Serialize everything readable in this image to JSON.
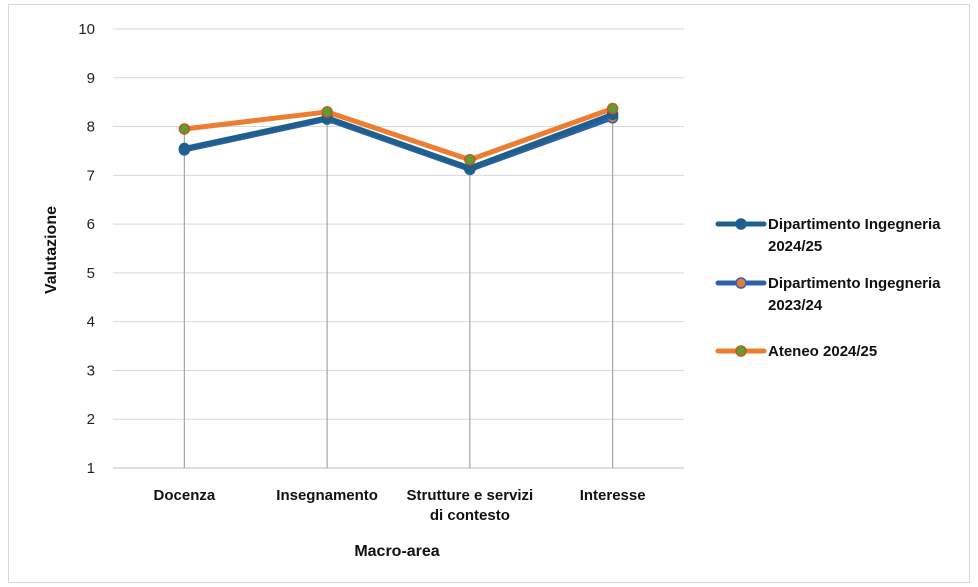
{
  "chart_data": {
    "type": "line",
    "title": "",
    "xlabel": "Macro-area",
    "ylabel": "Valutazione",
    "categories": [
      "Docenza",
      "Insegnamento",
      "Strutture e servizi di contesto",
      "Interesse"
    ],
    "category_lines": [
      [
        "Docenza"
      ],
      [
        "Insegnamento"
      ],
      [
        "Strutture e servizi",
        "di contesto"
      ],
      [
        "Interesse"
      ]
    ],
    "ylim": [
      1,
      10
    ],
    "yticks": [
      "1",
      "2",
      "3",
      "4",
      "5",
      "6",
      "7",
      "8",
      "9",
      "10"
    ],
    "grid": "horizontal",
    "drop_lines": true,
    "legend_position": "right",
    "series": [
      {
        "name": "Dipartimento Ingegneria 2024/25",
        "name_lines": [
          "Dipartimento Ingegneria",
          "2024/25"
        ],
        "values": [
          7.55,
          8.18,
          7.15,
          8.25
        ],
        "line_color": "#1f5f8b",
        "marker_fill": "#1f5f8b",
        "marker_edge": "#1f5f8b"
      },
      {
        "name": "Dipartimento Ingegneria 2023/24",
        "name_lines": [
          "Dipartimento Ingegneria",
          "2023/24"
        ],
        "values": [
          7.52,
          8.15,
          7.12,
          8.18
        ],
        "line_color": "#2e62a8",
        "marker_fill": "#e8783a",
        "marker_edge": "#2e62a8"
      },
      {
        "name": "Ateneo 2024/25",
        "name_lines": [
          "Ateneo 2024/25"
        ],
        "values": [
          7.95,
          8.3,
          7.32,
          8.37
        ],
        "line_color": "#ed7d31",
        "marker_fill": "#5a9e3a",
        "marker_edge": "#c55a11"
      }
    ]
  }
}
